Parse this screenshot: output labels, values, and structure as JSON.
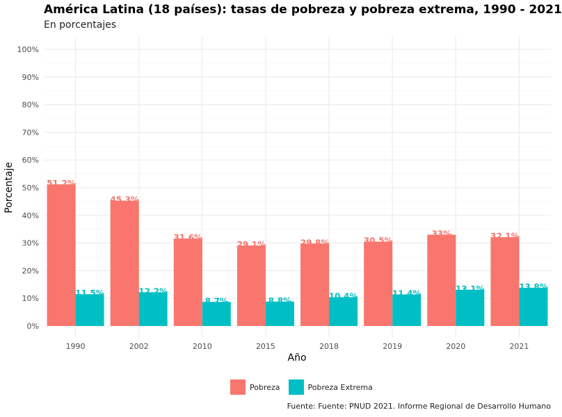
{
  "chart_data": {
    "type": "bar",
    "title": "América Latina (18 países): tasas de pobreza y pobreza extrema, 1990 - 2021",
    "subtitle": "En porcentajes",
    "xlabel": "Año",
    "ylabel": "Porcentaje",
    "caption": "Fuente: Fuente: PNUD 2021. Informe Regional de Desarrollo Humano",
    "categories": [
      "1990",
      "2002",
      "2010",
      "2015",
      "2018",
      "2019",
      "2020",
      "2021"
    ],
    "series": [
      {
        "name": "Pobreza",
        "color": "#F8766D",
        "values": [
          51.2,
          45.3,
          31.6,
          29.1,
          29.8,
          30.5,
          33,
          32.1
        ],
        "labels": [
          "51.2%",
          "45.3%",
          "31.6%",
          "29.1%",
          "29.8%",
          "30.5%",
          "33%",
          "32.1%"
        ]
      },
      {
        "name": "Pobreza Extrema",
        "color": "#00BFC4",
        "values": [
          11.5,
          12.2,
          8.7,
          8.8,
          10.4,
          11.4,
          13.1,
          13.8
        ],
        "labels": [
          "11.5%",
          "12.2%",
          "8.7%",
          "8.8%",
          "10.4%",
          "11.4%",
          "13.1%",
          "13.8%"
        ]
      }
    ],
    "ylim": [
      0,
      100
    ],
    "y_ticks": [
      "0%",
      "10%",
      "20%",
      "30%",
      "40%",
      "50%",
      "60%",
      "70%",
      "80%",
      "90%",
      "100%"
    ],
    "grid": true,
    "legend_position": "bottom"
  }
}
